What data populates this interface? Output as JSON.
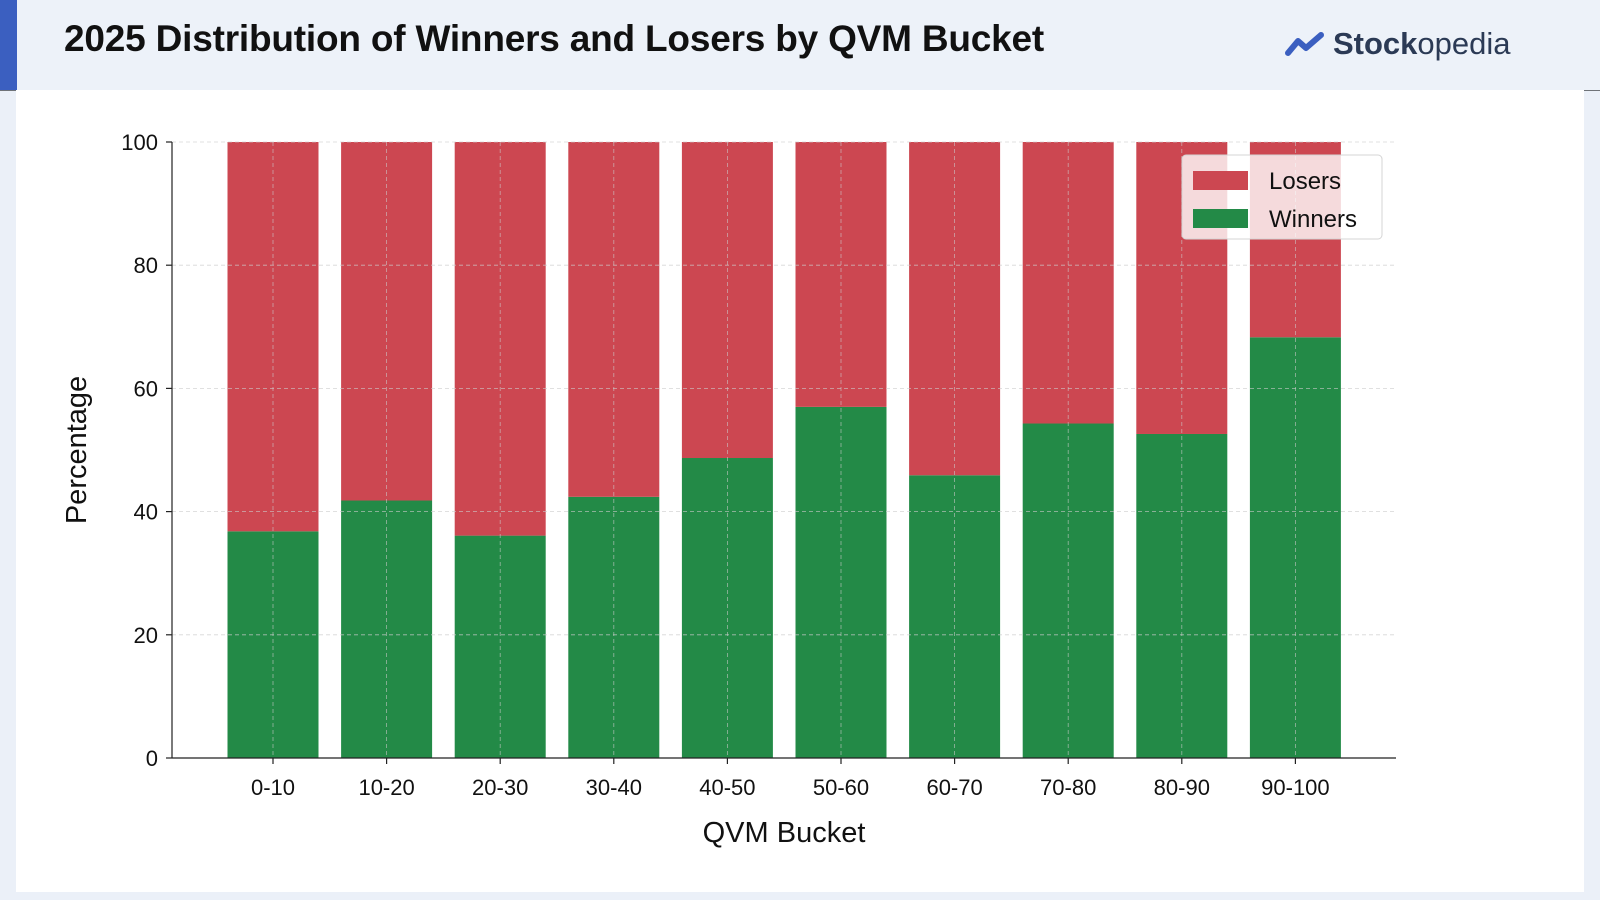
{
  "header": {
    "title": "2025 Distribution of Winners and Losers by QVM Bucket",
    "brand_part1": "Stock",
    "brand_part2": "opedia"
  },
  "colors": {
    "winners": "#238a47",
    "losers": "#cc4751",
    "brand": "#3b5fc0"
  },
  "chart_data": {
    "type": "bar",
    "stacked": true,
    "title": "2025 Distribution of Winners and Losers by QVM Bucket",
    "xlabel": "QVM Bucket",
    "ylabel": "Percentage",
    "categories": [
      "0-10",
      "10-20",
      "20-30",
      "30-40",
      "40-50",
      "50-60",
      "60-70",
      "70-80",
      "80-90",
      "90-100"
    ],
    "series": [
      {
        "name": "Winners",
        "values": [
          36.8,
          41.8,
          36.1,
          42.4,
          48.7,
          57.0,
          45.9,
          54.3,
          52.6,
          68.3
        ]
      },
      {
        "name": "Losers",
        "values": [
          63.2,
          58.2,
          63.9,
          57.6,
          51.3,
          43.0,
          54.1,
          45.7,
          47.4,
          31.7
        ]
      }
    ],
    "ylim": [
      0,
      100
    ],
    "yticks": [
      0,
      20,
      40,
      60,
      80,
      100
    ],
    "grid": true,
    "legend": {
      "position": "top-right",
      "entries": [
        "Losers",
        "Winners"
      ]
    }
  }
}
